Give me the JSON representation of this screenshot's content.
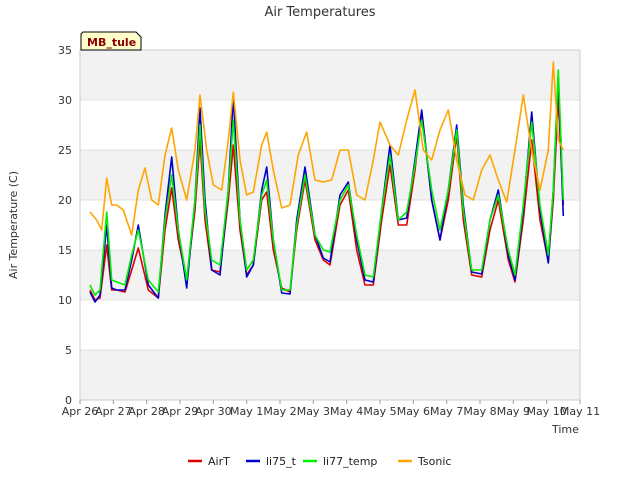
{
  "chart_data": {
    "type": "line",
    "title": "Air Temperatures",
    "xlabel": "Time",
    "ylabel": "Air Temperature (C)",
    "site_label": "MB_tule",
    "ylim": [
      0,
      35
    ],
    "yticks": [
      0,
      5,
      10,
      15,
      20,
      25,
      30,
      35
    ],
    "xlim": [
      0,
      15
    ],
    "xtick_labels": [
      "Apr 26",
      "Apr 27",
      "Apr 28",
      "Apr 29",
      "Apr 30",
      "May 1",
      "May 2",
      "May 3",
      "May 4",
      "May 5",
      "May 6",
      "May 7",
      "May 8",
      "May 9",
      "May 10",
      "May 11"
    ],
    "grid": "horizontal bands",
    "legend_position": "bottom",
    "series": [
      {
        "name": "AirT",
        "color": "#dd0000",
        "x": [
          0.3,
          0.45,
          0.6,
          0.8,
          0.95,
          1.1,
          1.35,
          1.55,
          1.75,
          2.05,
          2.35,
          2.55,
          2.75,
          2.95,
          3.2,
          3.45,
          3.6,
          3.75,
          3.95,
          4.2,
          4.45,
          4.6,
          4.8,
          5.0,
          5.2,
          5.45,
          5.6,
          5.8,
          6.05,
          6.3,
          6.5,
          6.75,
          7.05,
          7.3,
          7.5,
          7.8,
          8.05,
          8.3,
          8.55,
          8.8,
          9.05,
          9.3,
          9.55,
          9.8,
          10.05,
          10.25,
          10.55,
          10.8,
          11.05,
          11.3,
          11.5,
          11.75,
          12.05,
          12.3,
          12.55,
          12.85,
          13.05,
          13.3,
          13.55,
          13.8,
          14.05,
          14.2,
          14.35,
          14.5
        ],
        "values": [
          11.0,
          10.0,
          10.2,
          15.5,
          11.0,
          11.0,
          10.8,
          13.0,
          15.2,
          11.0,
          10.2,
          17.0,
          21.2,
          16.0,
          12.0,
          19.0,
          26.0,
          18.0,
          13.0,
          12.8,
          20.0,
          25.5,
          17.0,
          12.5,
          13.5,
          20.0,
          20.8,
          15.0,
          11.2,
          10.8,
          17.0,
          22.0,
          16.0,
          14.0,
          13.5,
          19.5,
          21.0,
          15.0,
          11.5,
          11.5,
          18.0,
          23.5,
          17.5,
          17.5,
          23.0,
          28.8,
          20.0,
          16.0,
          20.0,
          26.5,
          18.0,
          12.5,
          12.3,
          17.0,
          20.0,
          14.0,
          11.8,
          18.0,
          26.0,
          18.0,
          13.8,
          20.0,
          30.2,
          19.5
        ]
      },
      {
        "name": "li75_t",
        "color": "#0000cc",
        "x": [
          0.3,
          0.45,
          0.6,
          0.8,
          0.95,
          1.1,
          1.35,
          1.55,
          1.75,
          2.05,
          2.35,
          2.55,
          2.75,
          2.95,
          3.2,
          3.45,
          3.6,
          3.75,
          3.95,
          4.2,
          4.45,
          4.6,
          4.8,
          5.0,
          5.2,
          5.45,
          5.6,
          5.8,
          6.05,
          6.3,
          6.5,
          6.75,
          7.05,
          7.3,
          7.5,
          7.8,
          8.05,
          8.3,
          8.55,
          8.8,
          9.05,
          9.3,
          9.55,
          9.8,
          10.05,
          10.25,
          10.55,
          10.8,
          11.05,
          11.3,
          11.5,
          11.75,
          12.05,
          12.3,
          12.55,
          12.85,
          13.05,
          13.3,
          13.55,
          13.8,
          14.05,
          14.2,
          14.35,
          14.5
        ],
        "values": [
          10.8,
          9.8,
          10.5,
          17.5,
          11.2,
          11.0,
          11.0,
          14.0,
          17.5,
          11.5,
          10.2,
          18.5,
          24.3,
          17.0,
          11.2,
          20.0,
          29.2,
          20.0,
          13.0,
          12.5,
          21.0,
          30.4,
          18.0,
          12.3,
          13.5,
          21.0,
          23.3,
          16.0,
          10.7,
          10.6,
          18.0,
          23.3,
          16.5,
          14.2,
          13.8,
          20.5,
          21.8,
          16.0,
          12.0,
          11.8,
          19.0,
          25.5,
          18.0,
          18.2,
          24.0,
          29.0,
          20.0,
          16.0,
          21.0,
          27.5,
          19.5,
          12.8,
          12.6,
          18.0,
          21.0,
          14.5,
          12.0,
          19.0,
          28.8,
          19.0,
          13.7,
          21.0,
          32.3,
          18.4
        ]
      },
      {
        "name": "li77_temp",
        "color": "#00ee00",
        "x": [
          0.3,
          0.45,
          0.6,
          0.8,
          0.95,
          1.1,
          1.35,
          1.55,
          1.75,
          2.05,
          2.35,
          2.55,
          2.75,
          2.95,
          3.2,
          3.45,
          3.6,
          3.75,
          3.95,
          4.2,
          4.45,
          4.6,
          4.8,
          5.0,
          5.2,
          5.45,
          5.6,
          5.8,
          6.05,
          6.3,
          6.5,
          6.75,
          7.05,
          7.3,
          7.5,
          7.8,
          8.05,
          8.3,
          8.55,
          8.8,
          9.05,
          9.3,
          9.55,
          9.8,
          10.05,
          10.25,
          10.55,
          10.8,
          11.05,
          11.3,
          11.5,
          11.75,
          12.05,
          12.3,
          12.55,
          12.85,
          13.05,
          13.3,
          13.55,
          13.8,
          14.05,
          14.2,
          14.35,
          14.5
        ],
        "values": [
          11.5,
          10.5,
          11.0,
          18.8,
          12.0,
          11.8,
          11.5,
          14.5,
          17.0,
          12.0,
          10.8,
          18.0,
          22.5,
          17.0,
          12.0,
          20.0,
          27.5,
          19.0,
          14.0,
          13.5,
          21.0,
          28.0,
          18.0,
          13.0,
          14.0,
          20.5,
          22.0,
          16.0,
          11.0,
          11.0,
          17.5,
          22.5,
          16.5,
          15.0,
          14.8,
          20.0,
          21.5,
          16.5,
          12.5,
          12.3,
          19.0,
          24.5,
          18.0,
          18.8,
          23.5,
          28.0,
          21.0,
          17.0,
          21.0,
          27.0,
          19.0,
          13.0,
          13.0,
          18.0,
          20.5,
          15.0,
          12.5,
          19.5,
          27.8,
          19.5,
          14.5,
          21.0,
          33.0,
          20.0
        ]
      },
      {
        "name": "Tsonic",
        "color": "#ffa500",
        "x": [
          0.3,
          0.5,
          0.65,
          0.8,
          0.95,
          1.1,
          1.3,
          1.55,
          1.75,
          1.95,
          2.15,
          2.35,
          2.55,
          2.75,
          2.95,
          3.2,
          3.45,
          3.6,
          3.8,
          4.0,
          4.25,
          4.45,
          4.6,
          4.8,
          5.0,
          5.2,
          5.45,
          5.6,
          5.8,
          6.05,
          6.3,
          6.55,
          6.8,
          7.05,
          7.3,
          7.55,
          7.8,
          8.05,
          8.3,
          8.55,
          8.8,
          9.0,
          9.3,
          9.55,
          9.8,
          10.05,
          10.3,
          10.55,
          10.8,
          11.05,
          11.3,
          11.55,
          11.8,
          12.05,
          12.3,
          12.55,
          12.8,
          13.05,
          13.3,
          13.55,
          13.8,
          14.05,
          14.2,
          14.35,
          14.5
        ],
        "values": [
          18.8,
          18.0,
          17.0,
          22.2,
          19.5,
          19.5,
          19.0,
          16.5,
          21.0,
          23.2,
          20.0,
          19.5,
          24.5,
          27.2,
          23.0,
          20.0,
          25.0,
          30.5,
          25.0,
          21.5,
          21.0,
          26.0,
          30.8,
          24.0,
          20.5,
          20.8,
          25.5,
          26.8,
          23.0,
          19.2,
          19.5,
          24.5,
          26.8,
          22.0,
          21.8,
          22.0,
          25.0,
          25.0,
          20.5,
          20.0,
          24.0,
          27.8,
          25.5,
          24.5,
          28.0,
          31.0,
          25.0,
          24.0,
          27.0,
          29.0,
          24.0,
          20.5,
          20.0,
          23.0,
          24.5,
          22.0,
          19.8,
          25.0,
          30.5,
          25.0,
          21.0,
          25.0,
          33.8,
          26.0,
          25.0
        ]
      }
    ]
  }
}
